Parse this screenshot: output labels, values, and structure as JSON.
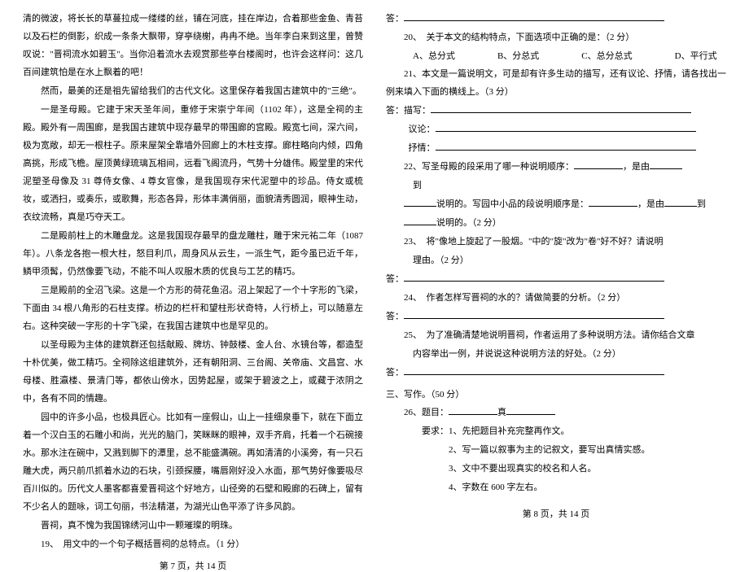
{
  "left": {
    "paragraphs": [
      "清的微波，将长长的草蔓拉成一缕缕的丝，铺在河底，挂在岸边，合着那些金鱼、青苔以及石栏的倒影，织成一条条大飘带，穿亭绕榭，冉冉不绝。当年李白来到这里，曾赞叹说：\"晋祠流水如碧玉\"。当你沿着流水去观赏那些亭台楼阁时，也许会这样问：这几百间建筑怕是在水上飘着的吧！",
      "然而，最美的还是祖先留给我们的古代文化。这里保存着我国古建筑中的\"三绝\"。",
      "一是圣母殿。它建于宋天圣年间，重修于宋崇宁年间（1102 年），这是全祠的主殿。殿外有一周围廊，是我国古建筑中现存最早的带围廊的宫殿。殿宽七间，深六间，极为宽敞，却无一根柱子。原来屋架全靠墙外回廊上的木柱支撑。廊柱略向内倾，四角高挑，形成飞檐。屋顶黄绿琉璃瓦相间，远看飞阁流丹，气势十分雄伟。殿堂里的宋代泥塑圣母像及 31 尊侍女像、4 尊女官像，是我国现存宋代泥塑中的珍品。侍女或梳妆，或洒扫，或奏乐，或歌舞，形态各异，形体丰满俏丽，面貌清秀圆润，眼神生动，衣纹流畅，真是巧夺天工。",
      "二是殿前柱上的木雕盘龙。这是我国现存最早的盘龙雕柱，雕于宋元祐二年（1087 年）。八条龙各抱一根大柱，怒目利爪，周身风从云生，一派生气，距今虽已近千年，鳞甲须髯，仍然像要飞动，不能不叫人叹服木质的优良与工艺的精巧。",
      "三是殿前的全沼飞梁。这是一个方形的荷花鱼沼。沼上架起了一个十字形的飞梁，下面由 34 根八角形的石柱支撑。桥边的栏杆和望柱形状奇特，人行桥上，可以随意左右。这种突破一字形的十字飞梁，在我国古建筑中也是罕见的。",
      "以圣母殿为主体的建筑群还包括献殿、牌坊、钟鼓楼、金人台、水镜台等，都造型十朴优美，做工精巧。全祠除这组建筑外，还有朝阳洞、三台阁、关帝庙、文昌宫、水母楼、胜瀛楼、景清门等，都依山傍水，因势起屋，或架于碧波之上，或藏于浓阴之中，各有不同的情趣。",
      "园中的许多小品，也极具匠心。比如有一座假山，山上一挂细泉垂下，就在下面立着一个汉白玉的石雕小和尚，光光的脑门，笑眯眯的眼神，双手齐肩，托着一个石碗接水。那水注在碗中，又溅到脚下的潭里，总不能盛满碗。再如清清的小溪旁，有一只石雕大虎，两只前爪抓着水边的石块，引颈探腰，嘴唇刚好没入水面，那气势好像要吸尽百川似的。历代文人墨客都喜爱晋祠这个好地方，山径旁的石壁和殿廊的石碑上，留有不少名人的题咏，词工句丽，书法精湛，为湖光山色平添了许多风韵。",
      "晋祠，真不愧为我国锦绣河山中一颗璀璨的明珠。"
    ],
    "q19": "19、　用文中的一个句子概括晋祠的总特点。（1 分）",
    "footer": "第 7 页，共 14 页"
  },
  "right": {
    "ans_label": "答：",
    "q20": "20、　关于本文的结构特点，下面选项中正确的是：（2 分）",
    "q20_opts": {
      "a": "A、总分式",
      "b": "B、分总式",
      "c": "C、总分总式",
      "d": "D、平行式"
    },
    "q21": "21、本文是一篇说明文，可是却有许多生动的描写，还有议论、抒情，请各找出一例来填入下面的横线上。（3 分）",
    "answer_label_desc": "答：描写：",
    "answer_label_arg": "议论：",
    "answer_label_lyric": "抒情：",
    "q22_a": "22、写圣母殿的段采用了哪一种说明顺序：",
    "q22_b": "，是由",
    "q22_c": "到",
    "q22_d": "说明的。写园中小品的段说明顺序是：",
    "q22_e": "，是由",
    "q22_f": "说明的。（2 分）",
    "q23_a": "23、　将\"像地上旋起了一股烟。\"中的\"旋\"改为\"卷\"好不好？请说明",
    "q23_b": "理由。（2 分）",
    "q24": "24、　作者怎样写晋祠的水的？请做简要的分析。（2 分）",
    "q25_a": "25、　为了准确清楚地说明晋祠，作者运用了多种说明方法。请你结合文章",
    "q25_b": "内容举出一例，并说说这种说明方法的好处。（2 分）",
    "section3": "三、写作。（50 分）",
    "q26": "26、题目：",
    "q26_blank_suffix": "真",
    "req_label": "要求：",
    "req1": "1、先把题目补充完整再作文。",
    "req2": "2、写一篇以叙事为主的记叙文，要写出真情实感。",
    "req3": "3、文中不要出现真实的校名和人名。",
    "req4": "4、字数在 600 字左右。",
    "footer": "第 8 页，共 14 页"
  },
  "style": {
    "font_size": 11,
    "line_height": 2.0,
    "text_color": "#000000",
    "bg_color": "#ffffff"
  }
}
